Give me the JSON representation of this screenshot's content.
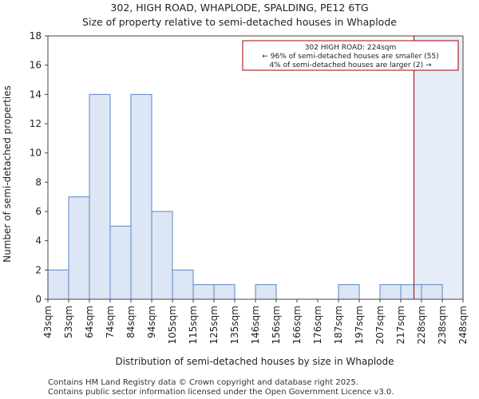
{
  "chart_data": {
    "type": "bar",
    "title": "302, HIGH ROAD, WHAPLODE, SPALDING, PE12 6TG",
    "subtitle": "Size of property relative to semi-detached houses in Whaplode",
    "xlabel": "Distribution of semi-detached houses by size in Whaplode",
    "ylabel": "Number of semi-detached properties",
    "bin_edges": [
      "43sqm",
      "53sqm",
      "64sqm",
      "74sqm",
      "84sqm",
      "94sqm",
      "105sqm",
      "115sqm",
      "125sqm",
      "135sqm",
      "146sqm",
      "156sqm",
      "166sqm",
      "176sqm",
      "187sqm",
      "197sqm",
      "207sqm",
      "217sqm",
      "228sqm",
      "238sqm",
      "248sqm"
    ],
    "values": [
      2,
      7,
      14,
      5,
      14,
      6,
      2,
      1,
      1,
      0,
      1,
      0,
      0,
      0,
      1,
      0,
      1,
      1,
      1,
      0
    ],
    "ylim": [
      0,
      18
    ],
    "yticks": [
      "0",
      "2",
      "4",
      "6",
      "8",
      "10",
      "12",
      "14",
      "16",
      "18"
    ],
    "marker_value": 224,
    "bar_color": "#dce6f4",
    "bar_edge_color": "#5b85c7",
    "marker_color": "#a00000",
    "highlight_color": "#e6edf8",
    "annotation": {
      "line1": "302 HIGH ROAD: 224sqm",
      "line2": "← 96% of semi-detached houses are smaller (55)",
      "line3": "4% of semi-detached houses are larger (2) →"
    }
  },
  "footer": {
    "line1": "Contains HM Land Registry data © Crown copyright and database right 2025.",
    "line2": "Contains public sector information licensed under the Open Government Licence v3.0."
  }
}
